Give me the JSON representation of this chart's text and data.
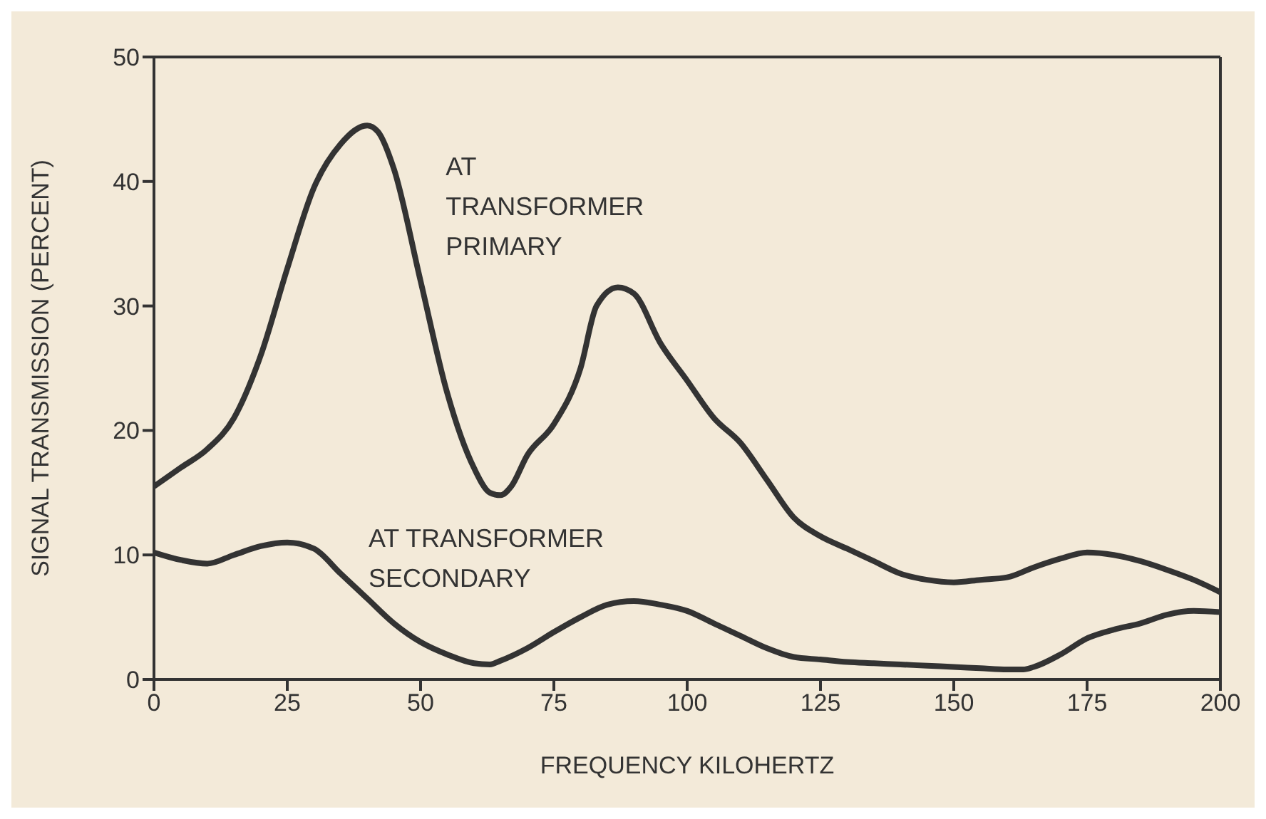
{
  "chart_data": {
    "type": "line",
    "xlabel": "FREQUENCY KILOHERTZ",
    "ylabel": "SIGNAL TRANSMISSION (PERCENT)",
    "xlim": [
      0,
      200
    ],
    "xticks": [
      0,
      25,
      50,
      75,
      100,
      125,
      150,
      175,
      200
    ],
    "ylim": [
      0,
      50
    ],
    "yticks": [
      0,
      10,
      20,
      30,
      40,
      50
    ],
    "legend": false,
    "marker": "none",
    "line_style": "solid",
    "series": [
      {
        "name": "AT\nTRANSFORMER\nPRIMARY",
        "color": "#333333",
        "x": [
          0,
          5,
          10,
          15,
          20,
          25,
          30,
          35,
          40,
          42,
          45,
          50,
          55,
          60,
          63,
          65,
          67,
          70,
          75,
          80,
          83,
          87,
          90,
          95,
          100,
          105,
          110,
          115,
          120,
          125,
          130,
          135,
          140,
          145,
          150,
          155,
          160,
          165,
          170,
          175,
          180,
          185,
          190,
          195,
          200
        ],
        "values": [
          15.5,
          17,
          18.5,
          21,
          26,
          33,
          39.5,
          43,
          44.5,
          44,
          41,
          32,
          23,
          17,
          15,
          14.8,
          15.5,
          18,
          20.5,
          25,
          30,
          31.5,
          31,
          27,
          24,
          21,
          19,
          16,
          13,
          11.5,
          10.5,
          9.5,
          8.5,
          8,
          7.8,
          8,
          8.2,
          9,
          9.7,
          10.2,
          10,
          9.5,
          8.8,
          8,
          7
        ]
      },
      {
        "name": "AT TRANSFORMER\nSECONDARY",
        "color": "#333333",
        "x": [
          0,
          5,
          10,
          15,
          20,
          25,
          30,
          35,
          40,
          45,
          50,
          55,
          60,
          63,
          65,
          70,
          75,
          80,
          85,
          90,
          95,
          100,
          105,
          110,
          115,
          120,
          125,
          130,
          135,
          140,
          145,
          150,
          155,
          160,
          163,
          165,
          170,
          175,
          180,
          185,
          190,
          195,
          200
        ],
        "values": [
          10.2,
          9.6,
          9.3,
          10,
          10.7,
          11,
          10.5,
          8.5,
          6.5,
          4.5,
          3,
          2,
          1.3,
          1.2,
          1.5,
          2.5,
          3.8,
          5,
          6,
          6.3,
          6,
          5.5,
          4.5,
          3.5,
          2.5,
          1.8,
          1.6,
          1.4,
          1.3,
          1.2,
          1.1,
          1,
          0.9,
          0.8,
          0.8,
          1,
          2,
          3.3,
          4,
          4.5,
          5.2,
          5.5,
          5.4
        ]
      }
    ]
  }
}
